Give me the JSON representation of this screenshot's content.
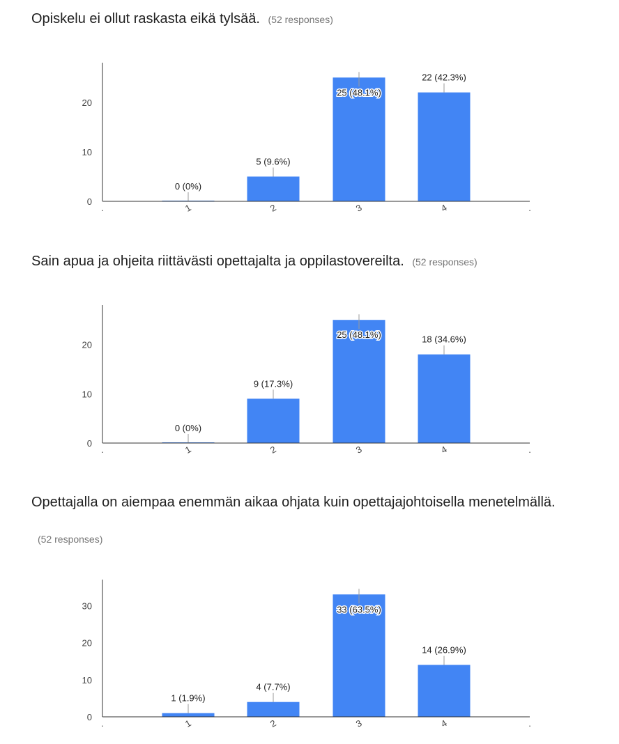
{
  "questions": [
    {
      "title": "Opiskelu ei ollut raskasta eikä tylsää.",
      "responses": "(52 responses)"
    },
    {
      "title": "Sain apua ja ohjeita riittävästi opettajalta ja oppilastovereilta.",
      "responses": "(52 responses)"
    },
    {
      "title": "Opettajalla on aiempaa enemmän aikaa ohjata kuin opettajajohtoisella menetelmällä.",
      "responses": "(52 responses)"
    }
  ],
  "colors": {
    "bar": "#4285f4",
    "axis": "#333333",
    "label_line": "#999999"
  },
  "chart_data": [
    {
      "type": "bar",
      "categories": [
        "1",
        "2",
        "3",
        "4"
      ],
      "values": [
        0,
        5,
        25,
        22
      ],
      "data_labels": [
        "0 (0%)",
        "5 (9.6%)",
        "25 (48.1%)",
        "22 (42.3%)"
      ],
      "yticks": [
        0,
        10,
        20
      ],
      "ylim": [
        0,
        28
      ]
    },
    {
      "type": "bar",
      "categories": [
        "1",
        "2",
        "3",
        "4"
      ],
      "values": [
        0,
        9,
        25,
        18
      ],
      "data_labels": [
        "0 (0%)",
        "9 (17.3%)",
        "25 (48.1%)",
        "18 (34.6%)"
      ],
      "yticks": [
        0,
        10,
        20
      ],
      "ylim": [
        0,
        28
      ]
    },
    {
      "type": "bar",
      "categories": [
        "1",
        "2",
        "3",
        "4"
      ],
      "values": [
        1,
        4,
        33,
        14
      ],
      "data_labels": [
        "1 (1.9%)",
        "4 (7.7%)",
        "33 (63.5%)",
        "14 (26.9%)"
      ],
      "yticks": [
        0,
        10,
        20,
        30
      ],
      "ylim": [
        0,
        37
      ]
    }
  ]
}
